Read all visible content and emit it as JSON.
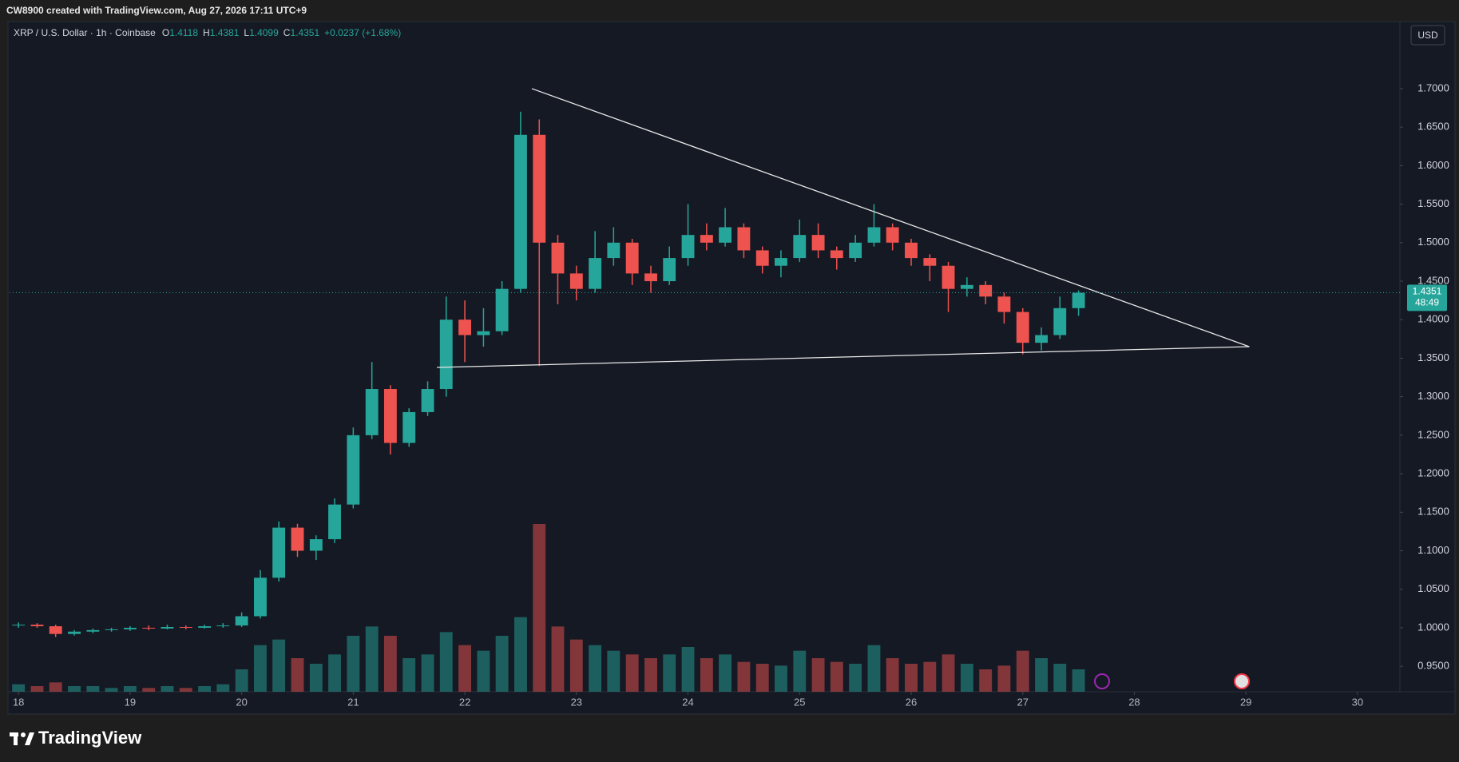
{
  "header": {
    "caption": "CW8900 created with TradingView.com, Aug 27, 2026 17:11 UTC+9",
    "symbol": "XRP / U.S. Dollar · 1h · Coinbase",
    "ohlc": [
      {
        "key": "O",
        "value": "1.4118"
      },
      {
        "key": "H",
        "value": "1.4381"
      },
      {
        "key": "L",
        "value": "1.4099"
      },
      {
        "key": "C",
        "value": "1.4351"
      }
    ],
    "change": "+0.0237 (+1.68%)",
    "currency": "USD"
  },
  "footer": {
    "brand": "TradingView"
  },
  "chart_data": {
    "type": "candlestick",
    "x": [
      18.0,
      18.167,
      18.333,
      18.5,
      18.667,
      18.833,
      19.0,
      19.167,
      19.333,
      19.5,
      19.667,
      19.833,
      20.0,
      20.167,
      20.333,
      20.5,
      20.667,
      20.833,
      21.0,
      21.167,
      21.333,
      21.5,
      21.667,
      21.833,
      22.0,
      22.167,
      22.333,
      22.5,
      22.667,
      22.833,
      23.0,
      23.167,
      23.333,
      23.5,
      23.667,
      23.833,
      24.0,
      24.167,
      24.333,
      24.5,
      24.667,
      24.833,
      25.0,
      25.167,
      25.333,
      25.5,
      25.667,
      25.833,
      26.0,
      26.167,
      26.333,
      26.5,
      26.667,
      26.833,
      27.0,
      27.167,
      27.333,
      27.5
    ],
    "open": [
      1.003,
      1.004,
      1.002,
      0.992,
      0.995,
      0.997,
      0.998,
      1.0,
      0.999,
      1.001,
      1.0,
      1.002,
      1.003,
      1.015,
      1.065,
      1.13,
      1.1,
      1.115,
      1.16,
      1.25,
      1.31,
      1.24,
      1.28,
      1.31,
      1.4,
      1.38,
      1.385,
      1.44,
      1.64,
      1.5,
      1.46,
      1.44,
      1.48,
      1.5,
      1.46,
      1.45,
      1.48,
      1.51,
      1.5,
      1.52,
      1.49,
      1.47,
      1.48,
      1.51,
      1.49,
      1.48,
      1.5,
      1.52,
      1.5,
      1.48,
      1.47,
      1.44,
      1.445,
      1.43,
      1.41,
      1.37,
      1.38,
      1.415
    ],
    "high": [
      1.007,
      1.006,
      1.004,
      0.997,
      0.999,
      1.0,
      1.002,
      1.003,
      1.004,
      1.003,
      1.004,
      1.006,
      1.02,
      1.075,
      1.138,
      1.135,
      1.12,
      1.168,
      1.26,
      1.345,
      1.315,
      1.285,
      1.32,
      1.43,
      1.425,
      1.415,
      1.45,
      1.67,
      1.66,
      1.51,
      1.47,
      1.515,
      1.52,
      1.505,
      1.47,
      1.495,
      1.55,
      1.525,
      1.545,
      1.525,
      1.495,
      1.49,
      1.53,
      1.525,
      1.495,
      1.51,
      1.55,
      1.525,
      1.505,
      1.485,
      1.475,
      1.455,
      1.45,
      1.435,
      1.415,
      1.39,
      1.43,
      1.438
    ],
    "low": [
      1.0,
      1.0,
      0.988,
      0.99,
      0.993,
      0.995,
      0.996,
      0.997,
      0.998,
      0.998,
      0.999,
      1.0,
      1.001,
      1.012,
      1.06,
      1.092,
      1.088,
      1.11,
      1.155,
      1.245,
      1.225,
      1.235,
      1.275,
      1.3,
      1.345,
      1.365,
      1.38,
      1.435,
      1.34,
      1.42,
      1.425,
      1.435,
      1.47,
      1.445,
      1.435,
      1.445,
      1.47,
      1.49,
      1.495,
      1.48,
      1.46,
      1.455,
      1.475,
      1.48,
      1.465,
      1.475,
      1.495,
      1.49,
      1.47,
      1.45,
      1.41,
      1.43,
      1.42,
      1.395,
      1.355,
      1.36,
      1.375,
      1.405
    ],
    "close": [
      1.004,
      1.002,
      0.992,
      0.995,
      0.997,
      0.998,
      1.0,
      0.999,
      1.001,
      1.0,
      1.002,
      1.003,
      1.015,
      1.065,
      1.13,
      1.1,
      1.115,
      1.16,
      1.25,
      1.31,
      1.24,
      1.28,
      1.31,
      1.4,
      1.38,
      1.385,
      1.44,
      1.64,
      1.5,
      1.46,
      1.44,
      1.48,
      1.5,
      1.46,
      1.45,
      1.48,
      1.51,
      1.5,
      1.52,
      1.49,
      1.47,
      1.48,
      1.51,
      1.49,
      1.48,
      1.5,
      1.52,
      1.5,
      1.48,
      1.47,
      1.44,
      1.445,
      1.43,
      1.41,
      1.37,
      1.38,
      1.415,
      1.435
    ],
    "volume": [
      4,
      3,
      5,
      3,
      3,
      2,
      3,
      2,
      3,
      2,
      3,
      4,
      12,
      25,
      28,
      18,
      15,
      20,
      30,
      35,
      30,
      18,
      20,
      32,
      25,
      22,
      30,
      40,
      90,
      35,
      28,
      25,
      22,
      20,
      18,
      20,
      24,
      18,
      20,
      16,
      15,
      14,
      22,
      18,
      16,
      15,
      25,
      18,
      15,
      16,
      20,
      15,
      12,
      14,
      22,
      18,
      15,
      12
    ],
    "up_color": "#26a69a",
    "down_color": "#ef5350",
    "trendlines": [
      {
        "x": [
          22.6,
          29.03
        ],
        "y": [
          1.7,
          1.365
        ]
      },
      {
        "x": [
          21.75,
          29.03
        ],
        "y": [
          1.338,
          1.365
        ]
      }
    ],
    "last_price": 1.4351,
    "countdown": "48:49",
    "xlim": [
      17.92,
      30.38
    ],
    "xticks": [
      18,
      19,
      20,
      21,
      22,
      23,
      24,
      25,
      26,
      27,
      28,
      29,
      30
    ],
    "ylim": [
      0.917,
      1.786
    ],
    "yticks": [
      {
        "value": 0.95,
        "label": "0.9500"
      },
      {
        "value": 1.0,
        "label": "1.0000"
      },
      {
        "value": 1.05,
        "label": "1.0500"
      },
      {
        "value": 1.1,
        "label": "1.1000"
      },
      {
        "value": 1.15,
        "label": "1.1500"
      },
      {
        "value": 1.2,
        "label": "1.2000"
      },
      {
        "value": 1.25,
        "label": "1.2500"
      },
      {
        "value": 1.3,
        "label": "1.3000"
      },
      {
        "value": 1.35,
        "label": "1.3500"
      },
      {
        "value": 1.4,
        "label": "1.4000"
      },
      {
        "value": 1.45,
        "label": "1.4500"
      },
      {
        "value": 1.5,
        "label": "1.5000"
      },
      {
        "value": 1.55,
        "label": "1.5500"
      },
      {
        "value": 1.6,
        "label": "1.6000"
      },
      {
        "value": 1.65,
        "label": "1.6500"
      },
      {
        "value": 1.7,
        "label": "1.7000"
      }
    ],
    "grid": false
  }
}
